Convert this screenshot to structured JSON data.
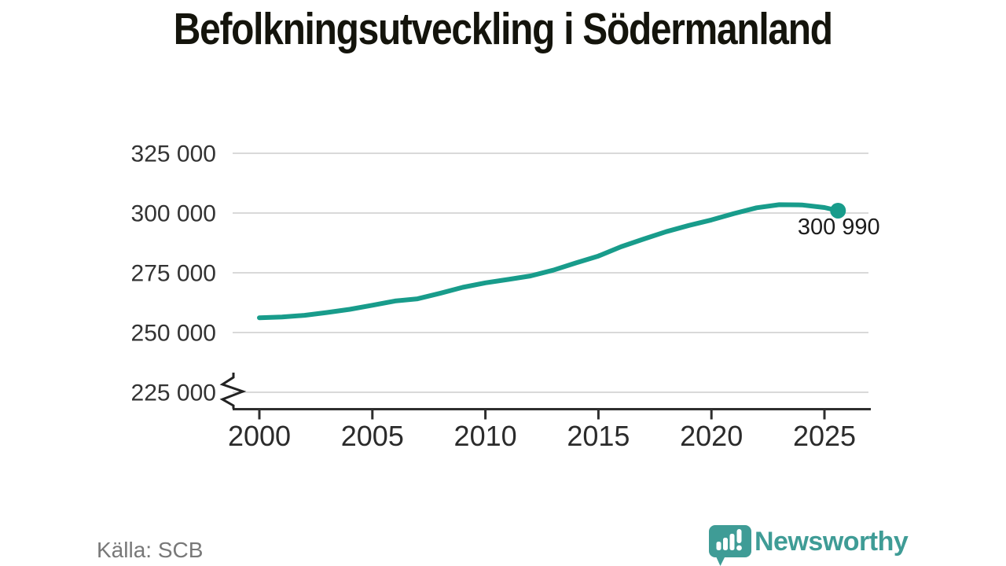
{
  "header": {
    "title": "Befolkningsutveckling i Södermanland"
  },
  "footer": {
    "source": "Källa: SCB",
    "brand_name": "Newsworthy"
  },
  "chart_data": {
    "type": "line",
    "title": "Befolkningsutveckling i Södermanland",
    "xlabel": "",
    "ylabel": "",
    "x_ticks": [
      2000,
      2005,
      2010,
      2015,
      2020,
      2025
    ],
    "y_ticks": [
      {
        "value": 325000,
        "label": "325 000"
      },
      {
        "value": 300000,
        "label": "300 000"
      },
      {
        "value": 275000,
        "label": "275 000"
      },
      {
        "value": 250000,
        "label": "250 000"
      },
      {
        "value": 225000,
        "label": "225 000"
      }
    ],
    "xlim": [
      1998.8,
      2027
    ],
    "ylim": [
      225000,
      325000
    ],
    "axis_break": true,
    "grid": "horizontal",
    "end_label": "300 990",
    "end_value": 300990,
    "series": [
      {
        "color": "#189c8b",
        "points": [
          [
            2000,
            256200
          ],
          [
            2001,
            256500
          ],
          [
            2002,
            257200
          ],
          [
            2003,
            258400
          ],
          [
            2004,
            259700
          ],
          [
            2005,
            261400
          ],
          [
            2006,
            263200
          ],
          [
            2007,
            264100
          ],
          [
            2008,
            266400
          ],
          [
            2009,
            268900
          ],
          [
            2010,
            270800
          ],
          [
            2011,
            272200
          ],
          [
            2012,
            273700
          ],
          [
            2013,
            276100
          ],
          [
            2014,
            279100
          ],
          [
            2015,
            282000
          ],
          [
            2016,
            285900
          ],
          [
            2017,
            289100
          ],
          [
            2018,
            292200
          ],
          [
            2019,
            294800
          ],
          [
            2020,
            297100
          ],
          [
            2021,
            299800
          ],
          [
            2022,
            302200
          ],
          [
            2023,
            303500
          ],
          [
            2024,
            303400
          ],
          [
            2025,
            302300
          ],
          [
            2025.6,
            300990
          ]
        ]
      }
    ]
  },
  "colors": {
    "line": "#189c8b",
    "grid": "#d9d9d9",
    "axis": "#2e2e2e",
    "tick_label": "#333333",
    "end_label": "#1c1c1c",
    "brand": "#3f9c96",
    "source_text": "#787878"
  },
  "icons": {
    "brand_icon": "speech-bubble-bar-chart-exclamation"
  }
}
